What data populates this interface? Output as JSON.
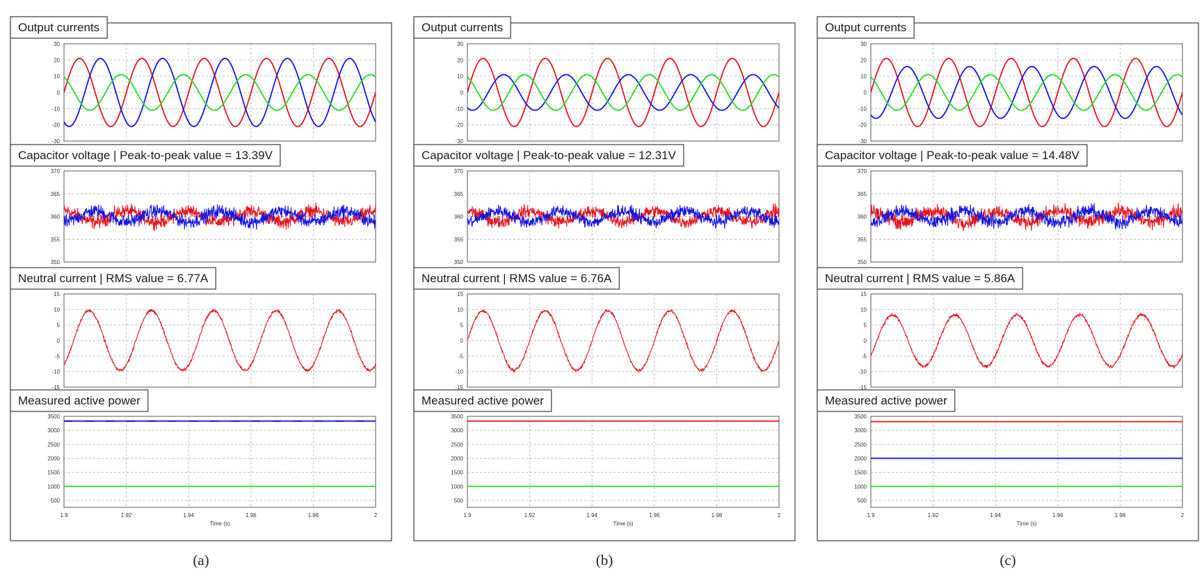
{
  "chart_data": [
    {
      "panel": "(a)",
      "caption": "(a)",
      "subplots": [
        {
          "title": "Output currents",
          "type": "line",
          "x_range": [
            1.9,
            2.0
          ],
          "ylim": [
            -30,
            30
          ],
          "yticks": [
            -30,
            -20,
            -10,
            0,
            10,
            20,
            30
          ],
          "grid": true,
          "series": [
            {
              "color": "#e8141e",
              "shape": "sine",
              "amplitude": 21,
              "frequency_hz": 50,
              "phase_deg": 0,
              "noise": 0
            },
            {
              "color": "#1414e6",
              "shape": "sine",
              "amplitude": 21,
              "frequency_hz": 50,
              "phase_deg": 240,
              "noise": 0
            },
            {
              "color": "#22dd22",
              "shape": "sine",
              "amplitude": 11,
              "frequency_hz": 50,
              "phase_deg": 120,
              "noise": 0
            }
          ]
        },
        {
          "title": "Capacitor voltage | Peak-to-peak value = 13.39V",
          "type": "line",
          "x_range": [
            1.9,
            2.0
          ],
          "ylim": [
            350,
            370
          ],
          "yticks": [
            350,
            355,
            360,
            365,
            370
          ],
          "grid": true,
          "series": [
            {
              "color": "#e8141e",
              "shape": "sine",
              "offset": 360,
              "amplitude": 1.2,
              "frequency_hz": 50,
              "phase_deg": 90,
              "noise": 2.2
            },
            {
              "color": "#1414e6",
              "shape": "sine",
              "offset": 360,
              "amplitude": 1.2,
              "frequency_hz": 50,
              "phase_deg": 270,
              "noise": 2.2
            }
          ]
        },
        {
          "title": "Neutral current | RMS value = 6.77A",
          "type": "line",
          "x_range": [
            1.9,
            2.0
          ],
          "ylim": [
            -15,
            15
          ],
          "yticks": [
            -15,
            -10,
            -5,
            0,
            5,
            10,
            15
          ],
          "grid": true,
          "series": [
            {
              "color": "#e8141e",
              "shape": "sine",
              "amplitude": 9.6,
              "frequency_hz": 50,
              "phase_deg": -55,
              "noise": 0.7
            }
          ]
        },
        {
          "title": "Measured active power",
          "type": "line",
          "x_range": [
            1.9,
            2.0
          ],
          "ylim": [
            250,
            3500
          ],
          "yticks": [
            500,
            1000,
            1500,
            2000,
            2500,
            3000,
            3500
          ],
          "xticks": [
            "1.9",
            "1.92",
            "1.94",
            "1.96",
            "1.98",
            "2"
          ],
          "xlabel": "Time (s)",
          "grid": true,
          "series": [
            {
              "color": "#e8141e",
              "shape": "const",
              "offset": 3330,
              "noise": 0,
              "dashed": true
            },
            {
              "color": "#1414e6",
              "shape": "const",
              "offset": 3330,
              "noise": 0
            },
            {
              "color": "#22dd22",
              "shape": "const",
              "offset": 1000,
              "noise": 0
            }
          ]
        }
      ]
    },
    {
      "panel": "(b)",
      "caption": "(b)",
      "subplots": [
        {
          "title": "Output currents",
          "type": "line",
          "x_range": [
            1.9,
            2.0
          ],
          "ylim": [
            -30,
            30
          ],
          "yticks": [
            -30,
            -20,
            -10,
            0,
            10,
            20,
            30
          ],
          "grid": true,
          "series": [
            {
              "color": "#e8141e",
              "shape": "sine",
              "amplitude": 21,
              "frequency_hz": 50,
              "phase_deg": 0,
              "noise": 0
            },
            {
              "color": "#1414e6",
              "shape": "sine",
              "amplitude": 11,
              "frequency_hz": 50,
              "phase_deg": 240,
              "noise": 0
            },
            {
              "color": "#22dd22",
              "shape": "sine",
              "amplitude": 11,
              "frequency_hz": 50,
              "phase_deg": 120,
              "noise": 0
            }
          ]
        },
        {
          "title": "Capacitor voltage | Peak-to-peak value = 12.31V",
          "type": "line",
          "x_range": [
            1.9,
            2.0
          ],
          "ylim": [
            350,
            370
          ],
          "yticks": [
            350,
            355,
            360,
            365,
            370
          ],
          "grid": true,
          "series": [
            {
              "color": "#e8141e",
              "shape": "sine",
              "offset": 360,
              "amplitude": 1.2,
              "frequency_hz": 50,
              "phase_deg": 90,
              "noise": 2.0
            },
            {
              "color": "#1414e6",
              "shape": "sine",
              "offset": 360,
              "amplitude": 1.2,
              "frequency_hz": 50,
              "phase_deg": 270,
              "noise": 2.0
            }
          ]
        },
        {
          "title": "Neutral current | RMS value = 6.76A",
          "type": "line",
          "x_range": [
            1.9,
            2.0
          ],
          "ylim": [
            -15,
            15
          ],
          "yticks": [
            -15,
            -10,
            -5,
            0,
            5,
            10,
            15
          ],
          "grid": true,
          "series": [
            {
              "color": "#e8141e",
              "shape": "sine",
              "amplitude": 9.6,
              "frequency_hz": 50,
              "phase_deg": 0,
              "noise": 0.7
            }
          ]
        },
        {
          "title": "Measured active power",
          "type": "line",
          "x_range": [
            1.9,
            2.0
          ],
          "ylim": [
            250,
            3500
          ],
          "yticks": [
            500,
            1000,
            1500,
            2000,
            2500,
            3000,
            3500
          ],
          "xticks": [
            "1.9",
            "1.92",
            "1.94",
            "1.96",
            "1.98",
            "2"
          ],
          "xlabel": "Time (s)",
          "grid": true,
          "series": [
            {
              "color": "#e8141e",
              "shape": "const",
              "offset": 3330,
              "noise": 0
            },
            {
              "color": "#22dd22",
              "shape": "const",
              "offset": 1000,
              "noise": 0
            }
          ]
        }
      ]
    },
    {
      "panel": "(c)",
      "caption": "(c)",
      "subplots": [
        {
          "title": "Output currents",
          "type": "line",
          "x_range": [
            1.9,
            2.0
          ],
          "ylim": [
            -30,
            30
          ],
          "yticks": [
            -30,
            -20,
            -10,
            0,
            10,
            20,
            30
          ],
          "grid": true,
          "series": [
            {
              "color": "#e8141e",
              "shape": "sine",
              "amplitude": 21,
              "frequency_hz": 50,
              "phase_deg": 0,
              "noise": 0
            },
            {
              "color": "#1414e6",
              "shape": "sine",
              "amplitude": 16,
              "frequency_hz": 50,
              "phase_deg": 240,
              "noise": 0
            },
            {
              "color": "#22dd22",
              "shape": "sine",
              "amplitude": 11,
              "frequency_hz": 50,
              "phase_deg": 120,
              "noise": 0
            }
          ]
        },
        {
          "title": "Capacitor voltage | Peak-to-peak value = 14.48V",
          "type": "line",
          "x_range": [
            1.9,
            2.0
          ],
          "ylim": [
            350,
            370
          ],
          "yticks": [
            350,
            355,
            360,
            365,
            370
          ],
          "grid": true,
          "series": [
            {
              "color": "#e8141e",
              "shape": "sine",
              "offset": 360,
              "amplitude": 1.2,
              "frequency_hz": 50,
              "phase_deg": 90,
              "noise": 2.3
            },
            {
              "color": "#1414e6",
              "shape": "sine",
              "offset": 360,
              "amplitude": 1.2,
              "frequency_hz": 50,
              "phase_deg": 270,
              "noise": 2.3
            }
          ]
        },
        {
          "title": "Neutral current | RMS value = 5.86A",
          "type": "line",
          "x_range": [
            1.9,
            2.0
          ],
          "ylim": [
            -15,
            15
          ],
          "yticks": [
            -15,
            -10,
            -5,
            0,
            5,
            10,
            15
          ],
          "grid": true,
          "series": [
            {
              "color": "#e8141e",
              "shape": "sine",
              "amplitude": 8.3,
              "frequency_hz": 50,
              "phase_deg": -35,
              "noise": 0.7
            }
          ]
        },
        {
          "title": "Measured active power",
          "type": "line",
          "x_range": [
            1.9,
            2.0
          ],
          "ylim": [
            250,
            3500
          ],
          "yticks": [
            500,
            1000,
            1500,
            2000,
            2500,
            3000,
            3500
          ],
          "xticks": [
            "1.9",
            "1.92",
            "1.94",
            "1.96",
            "1.98",
            "2"
          ],
          "xlabel": "Time (s)",
          "grid": true,
          "series": [
            {
              "color": "#e8141e",
              "shape": "const",
              "offset": 3310,
              "noise": 0
            },
            {
              "color": "#1414e6",
              "shape": "const",
              "offset": 2000,
              "noise": 0
            },
            {
              "color": "#22dd22",
              "shape": "const",
              "offset": 1000,
              "noise": 0
            }
          ]
        }
      ]
    }
  ]
}
